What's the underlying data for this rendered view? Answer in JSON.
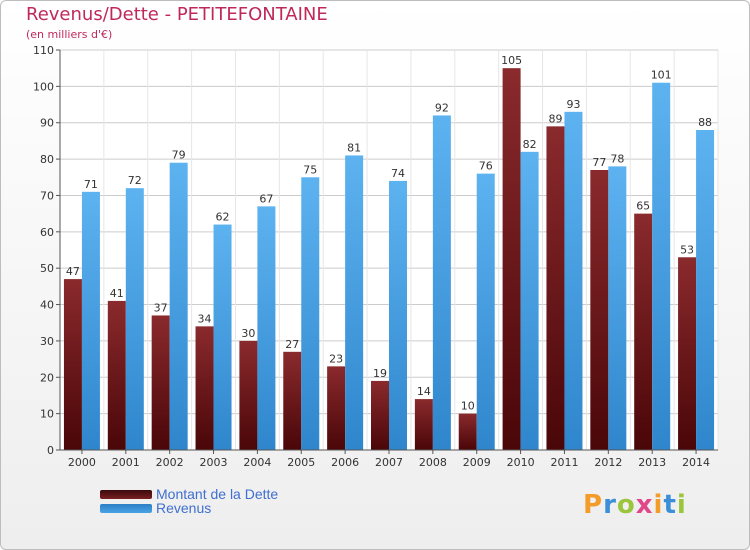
{
  "title": "Revenus/Dette - PETITEFONTAINE",
  "subtitle": "(en milliers d'€)",
  "logo": {
    "text": "Proxiti",
    "colors": [
      "#f39c2a",
      "#3b8fd9",
      "#9bc53d",
      "#e0468a",
      "#f39c2a",
      "#3b8fd9",
      "#9bc53d"
    ]
  },
  "colors": {
    "dette": "#7a1f22",
    "revenus": "#4aa3e6",
    "axis": "#555555",
    "grid": "#cccccc",
    "label": "#333333"
  },
  "chart_data": {
    "type": "bar",
    "title": "Revenus/Dette - PETITEFONTAINE",
    "subtitle": "(en milliers d'€)",
    "categories": [
      "2000",
      "2001",
      "2002",
      "2003",
      "2004",
      "2005",
      "2006",
      "2007",
      "2008",
      "2009",
      "2010",
      "2011",
      "2012",
      "2013",
      "2014"
    ],
    "series": [
      {
        "name": "Montant de la Dette",
        "color": "#7a1f22",
        "values": [
          47,
          41,
          37,
          34,
          30,
          27,
          23,
          19,
          14,
          10,
          105,
          89,
          77,
          65,
          53
        ]
      },
      {
        "name": "Revenus",
        "color": "#4aa3e6",
        "values": [
          71,
          72,
          79,
          62,
          67,
          75,
          81,
          74,
          92,
          76,
          82,
          93,
          78,
          101,
          88
        ]
      }
    ],
    "ylim": [
      0,
      110
    ],
    "yticks": [
      0,
      10,
      20,
      30,
      40,
      50,
      60,
      70,
      80,
      90,
      100,
      110
    ],
    "grid": true,
    "legend": "bottom-left"
  }
}
